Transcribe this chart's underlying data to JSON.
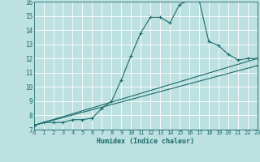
{
  "title": "",
  "xlabel": "Humidex (Indice chaleur)",
  "xlim": [
    0,
    23
  ],
  "ylim": [
    7,
    16
  ],
  "yticks": [
    7,
    8,
    9,
    10,
    11,
    12,
    13,
    14,
    15,
    16
  ],
  "xticks": [
    0,
    1,
    2,
    3,
    4,
    5,
    6,
    7,
    8,
    9,
    10,
    11,
    12,
    13,
    14,
    15,
    16,
    17,
    18,
    19,
    20,
    21,
    22,
    23
  ],
  "bg_color": "#bde0e0",
  "line_color": "#1a6b6b",
  "grid_color": "#ffffff",
  "series": [
    {
      "x": [
        0,
        1,
        2,
        3,
        4,
        5,
        6,
        7,
        8,
        9,
        10,
        11,
        12,
        13,
        14,
        15,
        16,
        17,
        18,
        19,
        20,
        21,
        22,
        23
      ],
      "y": [
        7.3,
        7.5,
        7.5,
        7.5,
        7.7,
        7.7,
        7.8,
        8.5,
        9.0,
        10.5,
        12.2,
        13.8,
        14.9,
        14.9,
        14.5,
        15.8,
        16.1,
        16.1,
        13.2,
        12.9,
        12.3,
        11.9,
        12.0,
        12.0
      ]
    },
    {
      "x": [
        0,
        23
      ],
      "y": [
        7.3,
        12.0
      ]
    },
    {
      "x": [
        0,
        23
      ],
      "y": [
        7.3,
        11.5
      ]
    }
  ]
}
